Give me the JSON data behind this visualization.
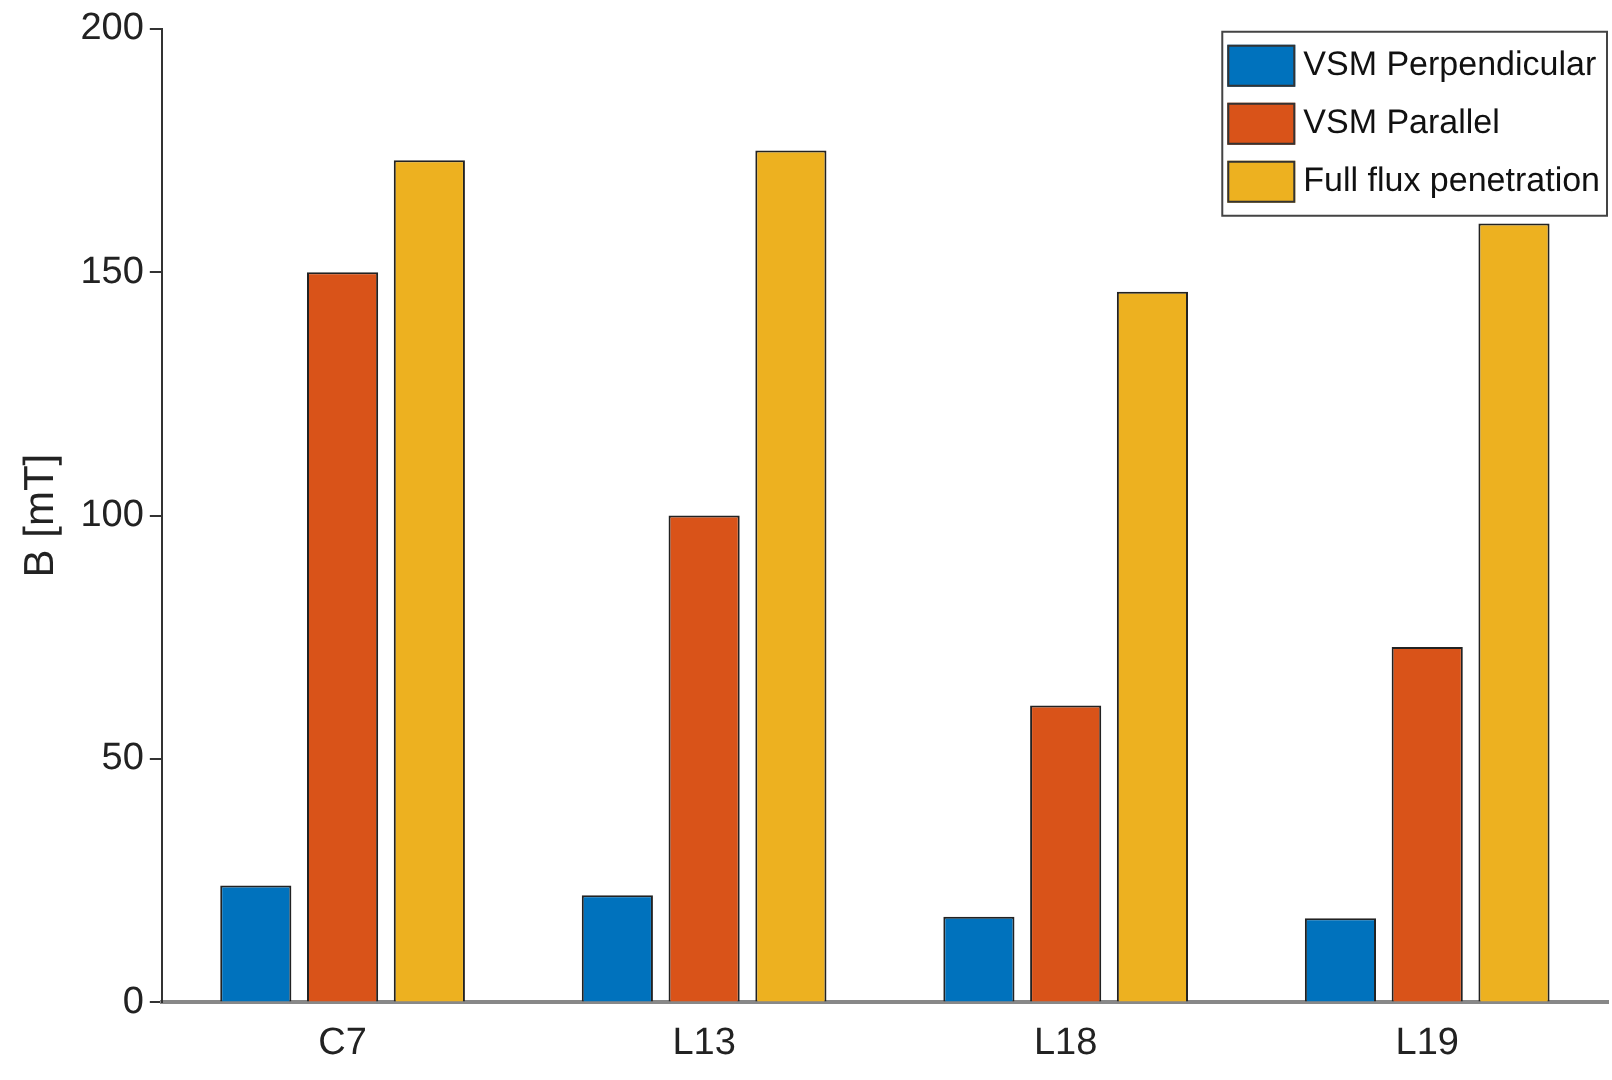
{
  "chart_data": {
    "type": "bar",
    "ylabel": "B [mT]",
    "categories": [
      "C7",
      "L13",
      "L18",
      "L19"
    ],
    "series": [
      {
        "name": "VSM Perpendicular",
        "color": "#0072bd",
        "values": [
          24,
          22,
          17.6,
          17.3
        ]
      },
      {
        "name": "VSM Parallel",
        "color": "#d95319",
        "values": [
          150,
          100,
          61,
          73
        ]
      },
      {
        "name": "Full flux penetration",
        "color": "#edb120",
        "values": [
          173,
          175,
          146,
          160
        ]
      }
    ],
    "ylim": [
      0,
      200
    ],
    "yticks": [
      0,
      50,
      100,
      150,
      200
    ],
    "grid": false,
    "legend": "top right"
  }
}
